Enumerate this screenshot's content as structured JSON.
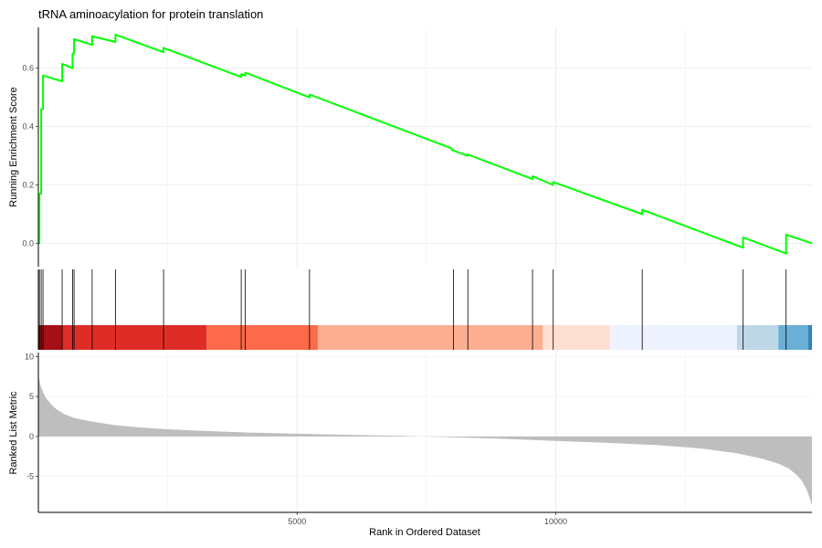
{
  "chart_data": {
    "type": "line",
    "title": "tRNA aminoacylation for protein translation",
    "xlabel": "Rank in Ordered Dataset",
    "xlim": [
      0,
      14950
    ],
    "x_ticks": [
      5000,
      10000
    ],
    "x_tick_labels": [
      "5000",
      "10000"
    ],
    "grid": true,
    "panels": [
      {
        "id": "running-score",
        "ylabel": "Running Enrichment Score",
        "ylim": [
          -0.08,
          0.74
        ],
        "y_ticks": [
          0.0,
          0.2,
          0.4,
          0.6
        ],
        "y_tick_labels": [
          "0.0",
          "0.2",
          "0.4",
          "0.6"
        ],
        "series": [
          {
            "color": "#00ff00",
            "x": [
              0,
              20,
              20,
              55,
              55,
              90,
              90,
              460,
              460,
              660,
              660,
              690,
              690,
              1040,
              1040,
              1490,
              1490,
              2420,
              2420,
              3920,
              3920,
              4000,
              4000,
              5240,
              5240,
              7990,
              7990,
              8290,
              8290,
              9550,
              9550,
              9950,
              9950,
              11670,
              11670,
              13620,
              13620,
              14450,
              14450,
              14950
            ],
            "y": [
              0.0,
              0.0,
              0.17,
              0.17,
              0.46,
              0.46,
              0.575,
              0.555,
              0.615,
              0.6,
              0.65,
              0.65,
              0.7,
              0.68,
              0.71,
              0.69,
              0.715,
              0.655,
              0.67,
              0.57,
              0.58,
              0.575,
              0.585,
              0.5,
              0.51,
              0.325,
              0.32,
              0.3,
              0.305,
              0.22,
              0.23,
              0.2,
              0.21,
              0.1,
              0.115,
              -0.015,
              0.02,
              -0.035,
              0.03,
              0.0
            ]
          }
        ]
      },
      {
        "id": "gene-hits",
        "hits": [
          20,
          55,
          90,
          460,
          660,
          690,
          1040,
          1490,
          2420,
          3920,
          4000,
          5240,
          8020,
          8300,
          9550,
          9950,
          11670,
          13620,
          14450
        ],
        "heat_bands": [
          {
            "from": 0,
            "to": 450,
            "color": "#a50f15"
          },
          {
            "from": 450,
            "to": 3250,
            "color": "#de2d26"
          },
          {
            "from": 3250,
            "to": 5400,
            "color": "#fb6a4a"
          },
          {
            "from": 5400,
            "to": 9750,
            "color": "#fcae91"
          },
          {
            "from": 9750,
            "to": 11050,
            "color": "#fee0d2"
          },
          {
            "from": 11050,
            "to": 13500,
            "color": "#eff3ff"
          },
          {
            "from": 13500,
            "to": 14300,
            "color": "#bdd7e7"
          },
          {
            "from": 14300,
            "to": 14880,
            "color": "#6baed6"
          },
          {
            "from": 14880,
            "to": 14950,
            "color": "#3182bd"
          }
        ]
      },
      {
        "id": "ranked-metric",
        "type": "area",
        "ylabel": "Ranked List Metric",
        "ylim": [
          -9.5,
          10.5
        ],
        "y_ticks": [
          10,
          5,
          0,
          -5
        ],
        "y_tick_labels": [
          "10",
          "5",
          "0",
          "-5"
        ],
        "fill_color": "#bebebe",
        "series": [
          {
            "x": [
              0,
              20,
              50,
              100,
              150,
              250,
              350,
              500,
              700,
              1000,
              1500,
              2000,
              2500,
              3000,
              4000,
              5000,
              6000,
              7000,
              7400,
              8000,
              9000,
              10000,
              11000,
              12000,
              12800,
              13500,
              14000,
              14300,
              14500,
              14650,
              14750,
              14820,
              14870,
              14910,
              14950
            ],
            "y": [
              8.0,
              7.0,
              6.2,
              5.4,
              4.8,
              4.0,
              3.4,
              2.8,
              2.3,
              1.9,
              1.4,
              1.1,
              0.9,
              0.75,
              0.5,
              0.35,
              0.2,
              0.08,
              0.0,
              -0.1,
              -0.3,
              -0.55,
              -0.8,
              -1.1,
              -1.5,
              -2.1,
              -2.8,
              -3.4,
              -4.0,
              -4.8,
              -5.5,
              -6.3,
              -7.0,
              -7.8,
              -8.6
            ]
          }
        ]
      }
    ]
  }
}
